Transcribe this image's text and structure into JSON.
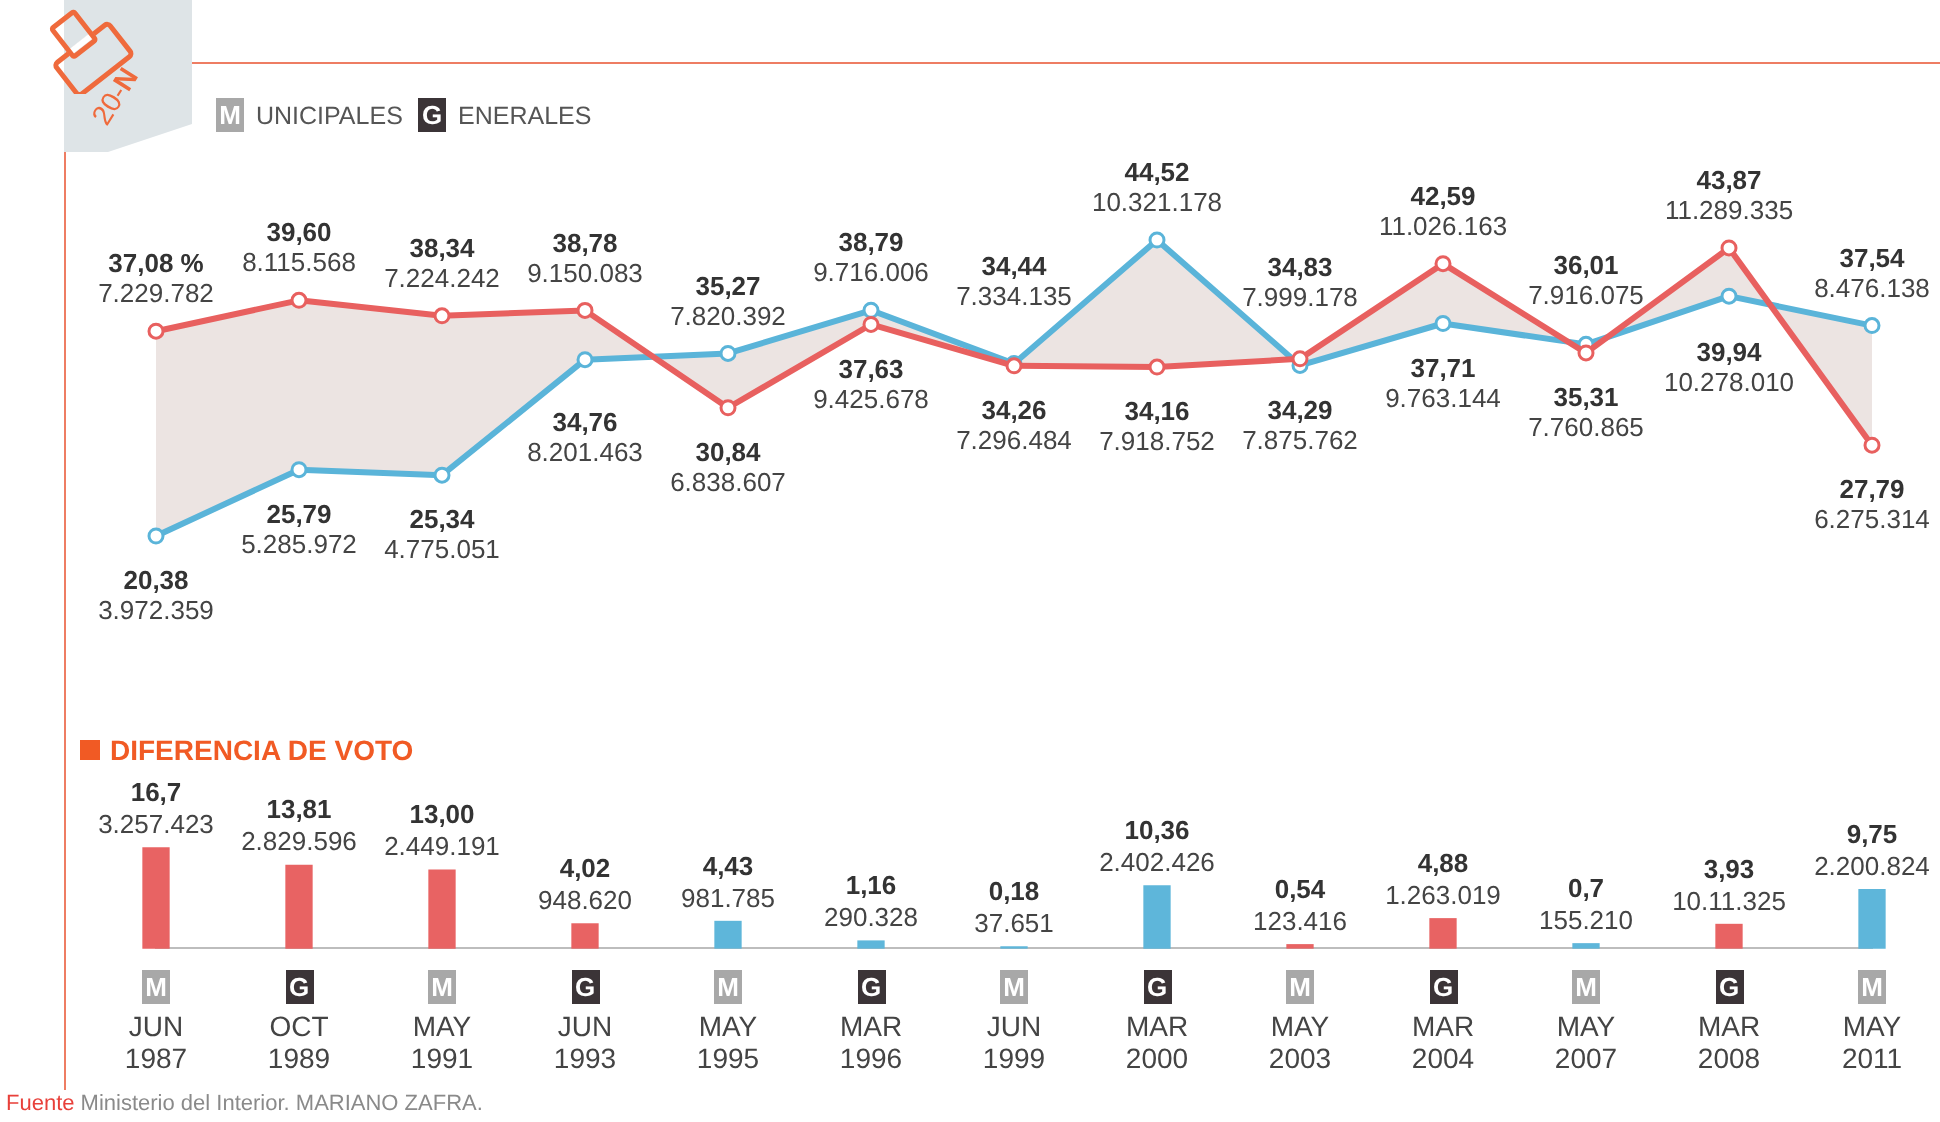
{
  "chart_data": [
    {
      "type": "line",
      "title": "20-N",
      "marker": "circle",
      "annotations": [
        "M UNICIPALES",
        "G ENERALES"
      ],
      "categories": [
        null,
        null,
        null,
        null,
        null,
        null,
        null,
        null,
        null,
        null,
        null,
        null,
        null
      ],
      "series": [
        {
          "color": "#e8605f",
          "values": [
            37.08,
            39.6,
            38.34,
            38.78,
            30.84,
            37.63,
            34.26,
            34.16,
            34.83,
            42.59,
            35.31,
            43.87,
            27.79
          ],
          "value_labels": [
            "37,08 %\n7.229.782",
            "39,60\n8.115.568",
            "38,34\n7.224.242",
            "38,78\n9.150.083",
            "30,84\n6.838.607",
            "37,63\n9.425.678",
            "34,26\n7.296.484",
            "34,16\n7.918.752",
            "34,83\n7.999.178",
            "42,59\n11.026.163",
            "35,31\n7.760.865",
            "43,87\n11.289.335",
            "27,79\n6.275.314"
          ],
          "lower": [
            20.38,
            25.79,
            25.34,
            34.76,
            35.27,
            38.79,
            34.44,
            44.52,
            34.29,
            37.71,
            36.01,
            39.94,
            37.54
          ],
          "upper": [
            37.08,
            39.6,
            38.34,
            38.78,
            30.84,
            37.63,
            34.26,
            34.16,
            34.83,
            42.59,
            35.31,
            43.87,
            27.79
          ]
        },
        {
          "color": "#5ab4d9",
          "values": [
            20.38,
            25.79,
            25.34,
            34.76,
            35.27,
            38.79,
            34.44,
            44.52,
            34.29,
            37.71,
            36.01,
            39.94,
            37.54
          ],
          "value_labels": [
            "20,38\n3.972.359",
            "25,79\n5.285.972",
            "25,34\n4.775.051",
            "34,76\n8.201.463",
            "35,27\n7.820.392",
            "38,79\n9.716.006",
            "34,44\n7.334.135",
            "44,52\n10.321.178",
            "34,29\n7.875.762",
            "37,71\n9.763.144",
            "36,01\n7.916.075",
            "39,94\n10.278.010",
            "37,54\n8.476.138"
          ]
        }
      ]
    },
    {
      "type": "bar",
      "title": "DIFERENCIA DE VOTO",
      "categories": [
        "M JUN 1987",
        "G OCT 1989",
        "M MAY 1991",
        "G JUN 1993",
        "M MAY 1995",
        "G MAR 1996",
        "M JUN 1999",
        "G MAR 2000",
        "M MAY 2003",
        "G MAR 2004",
        "M MAY 2007",
        "G MAR 2008",
        "M MAY 2011"
      ],
      "values": [
        16.7,
        13.81,
        13.0,
        4.02,
        4.43,
        1.16,
        0.18,
        10.36,
        0.54,
        4.88,
        0.7,
        3.93,
        9.75
      ],
      "colors": [
        "#e86363",
        "#e86363",
        "#e86363",
        "#e86363",
        "#5eb6da",
        "#5eb6da",
        "#5eb6da",
        "#5eb6da",
        "#e86363",
        "#e86363",
        "#5eb6da",
        "#e86363",
        "#5eb6da"
      ],
      "value_labels": [
        "16,7\n3.257.423",
        "13,81\n2.829.596",
        "13,00\n2.449.191",
        "4,02\n948.620",
        "4,43\n981.785",
        "1,16\n290.328",
        "0,18\n37.651",
        "10,36\n2.402.426",
        "0,54\n123.416",
        "4,88\n1.263.019",
        "0,7\n155.210",
        "3,93\n10.11.325",
        "9,75\n2.200.824"
      ],
      "annotations": [
        "Fuente Ministerio del Interior. MARIANO ZAFRA."
      ]
    }
  ]
}
